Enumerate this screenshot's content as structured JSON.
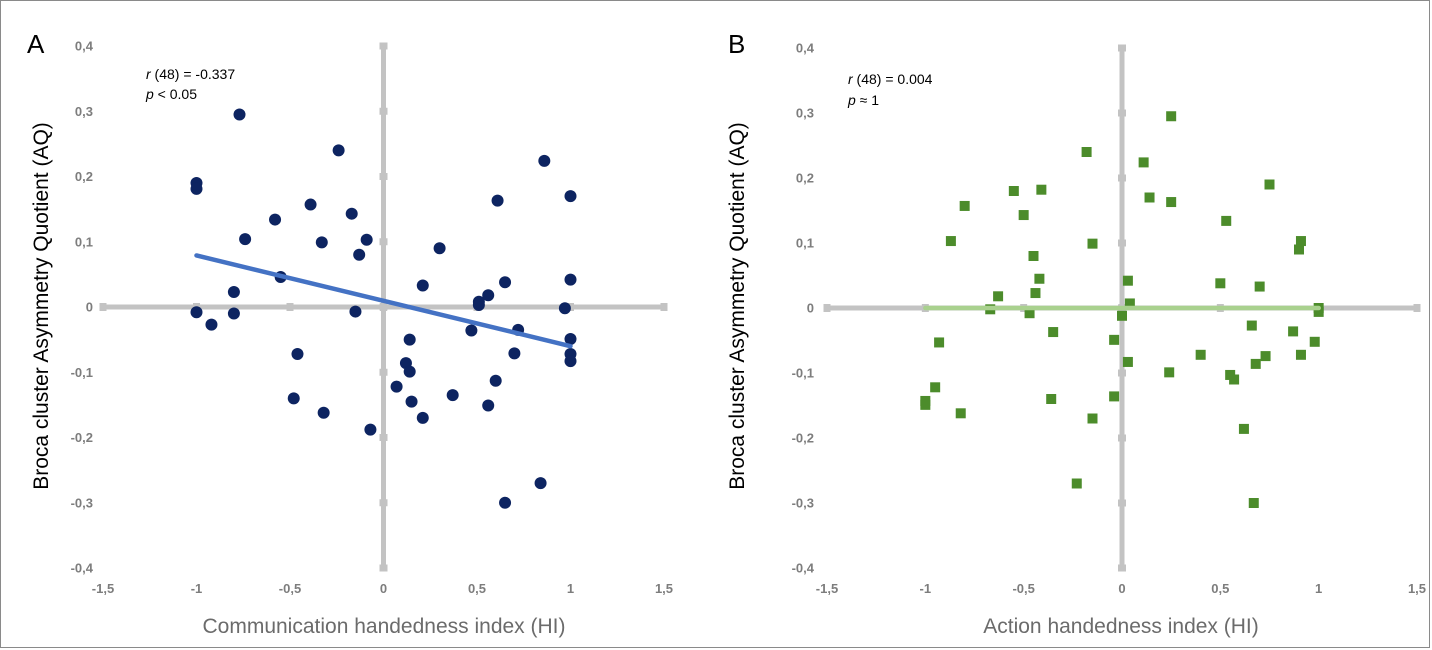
{
  "chart_data": [
    {
      "type": "scatter",
      "panel": "A",
      "xlabel": "Communication handedness index (HI)",
      "ylabel": "Broca cluster Asymmetry Quotient (AQ)",
      "xlim": [
        -1.5,
        1.5
      ],
      "ylim": [
        -0.4,
        0.4
      ],
      "xticks": [
        "-1,5",
        "-1",
        "-0,5",
        "0",
        "0,5",
        "1",
        "1,5"
      ],
      "yticks": [
        "-0,4",
        "-0,3",
        "-0,2",
        "-0,1",
        "0",
        "0,1",
        "0,2",
        "0,3",
        "0,4"
      ],
      "grid": false,
      "stats": {
        "r_label": "r",
        "r_text": " (48) = -0.337",
        "p_label": "p",
        "p_text": " < 0.05"
      },
      "marker": "circle",
      "marker_color": "#0d2461",
      "trend_color": "#4472c4",
      "trendline": {
        "x": [
          -1,
          1
        ],
        "y": [
          0.079,
          -0.06
        ]
      },
      "points": [
        {
          "x": -1.0,
          "y": 0.19
        },
        {
          "x": -1.0,
          "y": 0.181
        },
        {
          "x": -1.0,
          "y": -0.008
        },
        {
          "x": -0.92,
          "y": -0.027
        },
        {
          "x": -0.8,
          "y": 0.023
        },
        {
          "x": -0.8,
          "y": -0.01
        },
        {
          "x": -0.77,
          "y": 0.295
        },
        {
          "x": -0.74,
          "y": 0.104
        },
        {
          "x": -0.58,
          "y": 0.134
        },
        {
          "x": -0.55,
          "y": 0.046
        },
        {
          "x": -0.46,
          "y": -0.072
        },
        {
          "x": -0.48,
          "y": -0.14
        },
        {
          "x": -0.39,
          "y": 0.157
        },
        {
          "x": -0.33,
          "y": 0.099
        },
        {
          "x": -0.32,
          "y": -0.162
        },
        {
          "x": -0.24,
          "y": 0.24
        },
        {
          "x": -0.17,
          "y": 0.143
        },
        {
          "x": -0.15,
          "y": -0.007
        },
        {
          "x": -0.13,
          "y": 0.08
        },
        {
          "x": -0.09,
          "y": 0.103
        },
        {
          "x": -0.07,
          "y": -0.188
        },
        {
          "x": 0.07,
          "y": -0.122
        },
        {
          "x": 0.12,
          "y": -0.086
        },
        {
          "x": 0.14,
          "y": -0.05
        },
        {
          "x": 0.14,
          "y": -0.099
        },
        {
          "x": 0.15,
          "y": -0.145
        },
        {
          "x": 0.21,
          "y": 0.033
        },
        {
          "x": 0.21,
          "y": -0.17
        },
        {
          "x": 0.3,
          "y": 0.09
        },
        {
          "x": 0.37,
          "y": -0.135
        },
        {
          "x": 0.47,
          "y": -0.036
        },
        {
          "x": 0.51,
          "y": 0.008
        },
        {
          "x": 0.51,
          "y": 0.003
        },
        {
          "x": 0.56,
          "y": 0.018
        },
        {
          "x": 0.56,
          "y": -0.151
        },
        {
          "x": 0.6,
          "y": -0.113
        },
        {
          "x": 0.61,
          "y": 0.163
        },
        {
          "x": 0.65,
          "y": 0.038
        },
        {
          "x": 0.65,
          "y": -0.3
        },
        {
          "x": 0.7,
          "y": -0.071
        },
        {
          "x": 0.72,
          "y": -0.035
        },
        {
          "x": 0.84,
          "y": -0.27
        },
        {
          "x": 0.86,
          "y": 0.224
        },
        {
          "x": 0.97,
          "y": -0.002
        },
        {
          "x": 1.0,
          "y": 0.17
        },
        {
          "x": 1.0,
          "y": 0.042
        },
        {
          "x": 1.0,
          "y": -0.049
        },
        {
          "x": 1.0,
          "y": -0.072
        },
        {
          "x": 1.0,
          "y": -0.083
        }
      ]
    },
    {
      "type": "scatter",
      "panel": "B",
      "xlabel": "Action handedness index (HI)",
      "ylabel": "Broca cluster Asymmetry Quotient (AQ)",
      "xlim": [
        -1.5,
        1.5
      ],
      "ylim": [
        -0.4,
        0.4
      ],
      "xticks": [
        "-1,5",
        "-1",
        "-0,5",
        "0",
        "0,5",
        "1",
        "1,5"
      ],
      "yticks": [
        "-0,4",
        "-0,3",
        "-0,2",
        "-0,1",
        "0",
        "0,1",
        "0,2",
        "0,3",
        "0,4"
      ],
      "grid": false,
      "stats": {
        "r_label": "r",
        "r_text": " (48) = 0.004",
        "p_label": "p",
        "p_text": " ≈ 1"
      },
      "marker": "square",
      "marker_color": "#4c8c2b",
      "trend_color": "#a9d18e",
      "trendline": {
        "x": [
          -1,
          1
        ],
        "y": [
          0.0,
          0.0
        ]
      },
      "points": [
        {
          "x": -1.0,
          "y": -0.143
        },
        {
          "x": -1.0,
          "y": -0.149
        },
        {
          "x": -0.95,
          "y": -0.122
        },
        {
          "x": -0.93,
          "y": -0.053
        },
        {
          "x": -0.87,
          "y": 0.103
        },
        {
          "x": -0.82,
          "y": -0.162
        },
        {
          "x": -0.8,
          "y": 0.157
        },
        {
          "x": -0.67,
          "y": -0.002
        },
        {
          "x": -0.63,
          "y": 0.018
        },
        {
          "x": -0.55,
          "y": 0.18
        },
        {
          "x": -0.5,
          "y": 0.143
        },
        {
          "x": -0.47,
          "y": -0.008
        },
        {
          "x": -0.45,
          "y": 0.08
        },
        {
          "x": -0.44,
          "y": 0.023
        },
        {
          "x": -0.42,
          "y": 0.045
        },
        {
          "x": -0.41,
          "y": 0.182
        },
        {
          "x": -0.36,
          "y": -0.14
        },
        {
          "x": -0.35,
          "y": -0.037
        },
        {
          "x": -0.23,
          "y": -0.27
        },
        {
          "x": -0.18,
          "y": 0.24
        },
        {
          "x": -0.15,
          "y": 0.099
        },
        {
          "x": -0.15,
          "y": -0.17
        },
        {
          "x": -0.04,
          "y": -0.049
        },
        {
          "x": -0.04,
          "y": -0.136
        },
        {
          "x": 0.0,
          "y": -0.012
        },
        {
          "x": 0.03,
          "y": 0.042
        },
        {
          "x": 0.04,
          "y": 0.007
        },
        {
          "x": 0.03,
          "y": -0.083
        },
        {
          "x": 0.11,
          "y": 0.224
        },
        {
          "x": 0.14,
          "y": 0.17
        },
        {
          "x": 0.25,
          "y": 0.295
        },
        {
          "x": 0.25,
          "y": 0.163
        },
        {
          "x": 0.24,
          "y": -0.099
        },
        {
          "x": 0.4,
          "y": -0.072
        },
        {
          "x": 0.5,
          "y": 0.038
        },
        {
          "x": 0.53,
          "y": 0.134
        },
        {
          "x": 0.55,
          "y": -0.103
        },
        {
          "x": 0.57,
          "y": -0.11
        },
        {
          "x": 0.62,
          "y": -0.186
        },
        {
          "x": 0.66,
          "y": -0.027
        },
        {
          "x": 0.67,
          "y": -0.3
        },
        {
          "x": 0.68,
          "y": -0.086
        },
        {
          "x": 0.7,
          "y": 0.033
        },
        {
          "x": 0.73,
          "y": -0.074
        },
        {
          "x": 0.75,
          "y": 0.19
        },
        {
          "x": 0.87,
          "y": -0.036
        },
        {
          "x": 0.9,
          "y": 0.09
        },
        {
          "x": 0.91,
          "y": 0.103
        },
        {
          "x": 0.91,
          "y": -0.072
        },
        {
          "x": 0.98,
          "y": -0.052
        },
        {
          "x": 1.0,
          "y": 0.0
        },
        {
          "x": 1.0,
          "y": -0.006
        }
      ]
    }
  ]
}
